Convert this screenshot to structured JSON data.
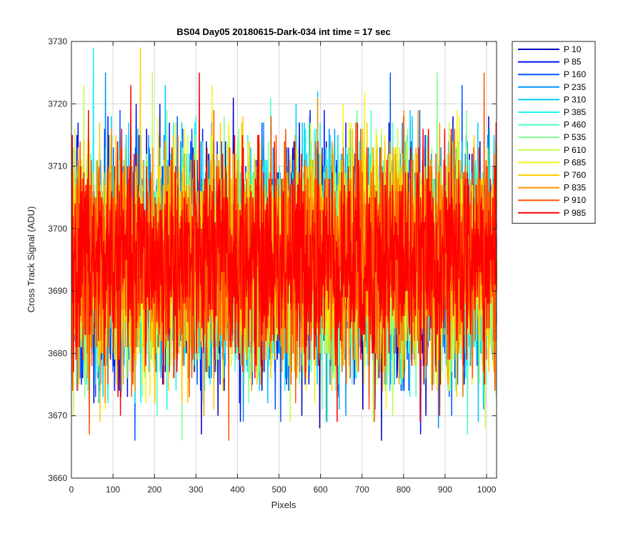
{
  "chart_data": {
    "type": "line",
    "title": "BS04 Day05 20180615-Dark-034 int time = 17 sec",
    "xlabel": "Pixels",
    "ylabel": "Cross Track Signal (ADU)",
    "xlim": [
      0,
      1024
    ],
    "ylim": [
      3660,
      3730
    ],
    "xticks": [
      0,
      100,
      200,
      300,
      400,
      500,
      600,
      700,
      800,
      900,
      1000
    ],
    "yticks": [
      3660,
      3670,
      3680,
      3690,
      3700,
      3710,
      3720,
      3730
    ],
    "grid": true,
    "legend_position": "outside-top-right",
    "series_mean": 3695,
    "series_spread": [
      3666,
      3729
    ],
    "series": [
      {
        "name": "P 10",
        "color": "#0000bf"
      },
      {
        "name": "P 85",
        "color": "#0011f2"
      },
      {
        "name": "P 160",
        "color": "#0057ff"
      },
      {
        "name": "P 235",
        "color": "#0095ff"
      },
      {
        "name": "P 310",
        "color": "#00ccff"
      },
      {
        "name": "P 385",
        "color": "#1af2ee"
      },
      {
        "name": "P 460",
        "color": "#4cffc4"
      },
      {
        "name": "P 535",
        "color": "#80ff8f"
      },
      {
        "name": "P 610",
        "color": "#bfff4c"
      },
      {
        "name": "P 685",
        "color": "#f4f418"
      },
      {
        "name": "P 760",
        "color": "#ffcc00"
      },
      {
        "name": "P 835",
        "color": "#ff9500"
      },
      {
        "name": "P 910",
        "color": "#ff5500"
      },
      {
        "name": "P 985",
        "color": "#ff0000"
      }
    ]
  }
}
